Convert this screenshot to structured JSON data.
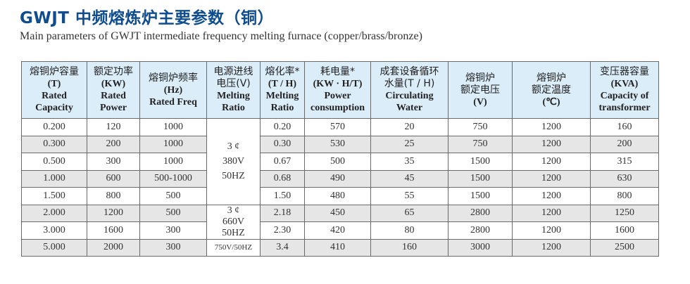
{
  "title": "GWJT 中频熔炼炉主要参数（铜）",
  "subtitle": "Main parameters of GWJT intermediate frequency melting furnace (copper/brass/bronze)",
  "colors": {
    "title": "#0f4d8e",
    "header_bg": "#dbedf9",
    "stripe": "#e6e6e6"
  },
  "headers": [
    {
      "cn": "熔铜炉容量",
      "unit": "(T)",
      "en1": "Rated",
      "en2": "Capacity"
    },
    {
      "cn": "额定功率",
      "unit": "(KW)",
      "en1": "Rated",
      "en2": "Power"
    },
    {
      "cn": "熔铜炉频率",
      "unit": "(Hz)",
      "en1": "Rated Freq",
      "en2": ""
    },
    {
      "cn": "电源进线",
      "unit": "电压(V)",
      "en1": "Melting",
      "en2": "Ratio"
    },
    {
      "cn": "熔化率*",
      "unit": "(T / H)",
      "en1": "Melting",
      "en2": "Ratio"
    },
    {
      "cn": "耗电量*",
      "unit": "(KW · H/T)",
      "en1": "Power",
      "en2": "consumption"
    },
    {
      "cn": "成套设备循环",
      "unit": "水量(T / H)",
      "en1": "Circulating",
      "en2": "Water"
    },
    {
      "cn": "熔铜炉",
      "unit": "额定电压",
      "en1": "(V)",
      "en2": ""
    },
    {
      "cn": "熔铜炉",
      "unit": "额定温度",
      "en1": "(℃)",
      "en2": ""
    },
    {
      "cn": "变压器容量",
      "unit": "(KVA)",
      "en1": "Capacity of",
      "en2": "transformer"
    }
  ],
  "voltage_groups": [
    {
      "l1": "3 ¢",
      "l2": "380V",
      "l3": "50HZ"
    },
    {
      "l1": "3 ¢",
      "l2": "660V",
      "l3": "50HZ"
    },
    {
      "l1": "750V/50HZ"
    }
  ],
  "rows": [
    [
      "0.200",
      "120",
      "1000",
      "0.20",
      "570",
      "20",
      "750",
      "1200",
      "160"
    ],
    [
      "0.300",
      "200",
      "1000",
      "0.30",
      "530",
      "25",
      "750",
      "1200",
      "200"
    ],
    [
      "0.500",
      "300",
      "1000",
      "0.67",
      "500",
      "35",
      "1500",
      "1200",
      "315"
    ],
    [
      "1.000",
      "600",
      "500-1000",
      "0.68",
      "490",
      "45",
      "1500",
      "1200",
      "630"
    ],
    [
      "1.500",
      "800",
      "500",
      "1.50",
      "480",
      "55",
      "1500",
      "1200",
      "800"
    ],
    [
      "2.000",
      "1200",
      "500",
      "2.18",
      "450",
      "65",
      "2800",
      "1200",
      "1250"
    ],
    [
      "3.000",
      "1600",
      "300",
      "2.30",
      "420",
      "80",
      "2800",
      "1200",
      "1600"
    ],
    [
      "5.000",
      "2000",
      "300",
      "3.4",
      "410",
      "160",
      "3000",
      "1200",
      "2500"
    ]
  ]
}
